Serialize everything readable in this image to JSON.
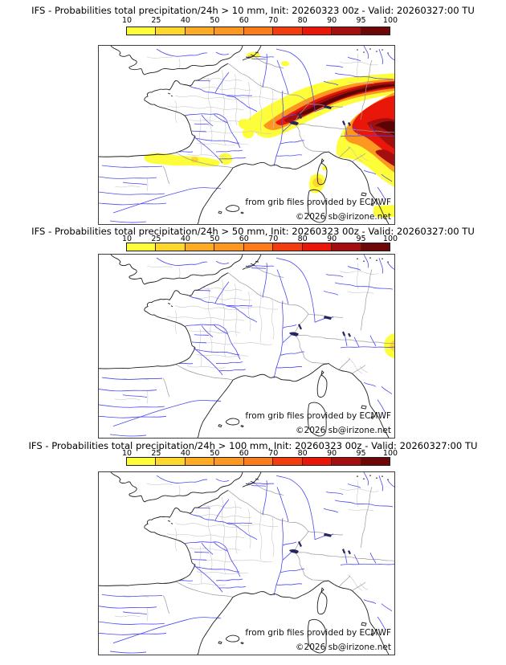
{
  "colorbar": {
    "tick_labels": [
      "10",
      "25",
      "40",
      "50",
      "60",
      "70",
      "80",
      "90",
      "95",
      "100"
    ],
    "segment_colors": [
      "#fdfd39",
      "#fed72e",
      "#fdab25",
      "#fc9721",
      "#fa7c1b",
      "#f23d10",
      "#e8170a",
      "#a30e0e",
      "#6e0707"
    ]
  },
  "panels": [
    {
      "threshold": "10 mm",
      "title": "IFS - Probabilities total precipitation/24h > 10 mm, Init: 20260323 00z - Valid: 20260327:00 TU",
      "attribution": "from grib files provided by ECMWF",
      "copyright": "©2026 sb@irizone.net"
    },
    {
      "threshold": "50 mm",
      "title": "IFS - Probabilities total precipitation/24h > 50 mm, Init: 20260323 00z - Valid: 20260327:00 TU",
      "attribution": "from grib files provided by ECMWF",
      "copyright": "©2026 sb@irizone.net"
    },
    {
      "threshold": "100 mm",
      "title": "IFS - Probabilities total precipitation/24h > 100 mm, Init: 20260323 00z - Valid: 20260327:00 TU",
      "attribution": "from grib files provided by ECMWF",
      "copyright": "©2026 sb@irizone.net"
    }
  ],
  "map_colors": {
    "river": "#4a4af0",
    "coastline": "#1e1e1e",
    "country_border": "#9b9b9b",
    "department_border": "#c8c8c8",
    "lake": "#26265e"
  }
}
